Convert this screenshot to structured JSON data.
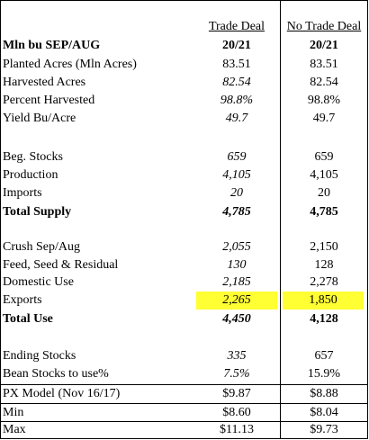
{
  "headers": {
    "trade_deal": "Trade Deal",
    "no_trade_deal": "No Trade Deal"
  },
  "title_row": {
    "label": "Mln bu SEP/AUG",
    "trade": "20/21",
    "no_trade": "20/21"
  },
  "rows": {
    "planted": {
      "label": "Planted Acres (Mln Acres)",
      "trade": "83.51",
      "no_trade": "83.51"
    },
    "harvested": {
      "label": "Harvested Acres",
      "trade": "82.54",
      "no_trade": "82.54"
    },
    "pct_harvested": {
      "label": "Percent Harvested",
      "trade": "98.8%",
      "no_trade": "98.8%"
    },
    "yield": {
      "label": "Yield Bu/Acre",
      "trade": "49.7",
      "no_trade": "49.7"
    },
    "beg_stocks": {
      "label": "Beg. Stocks",
      "trade": "659",
      "no_trade": "659"
    },
    "production": {
      "label": "Production",
      "trade": "4,105",
      "no_trade": "4,105"
    },
    "imports": {
      "label": "Imports",
      "trade": "20",
      "no_trade": "20"
    },
    "total_supply": {
      "label": "Total Supply",
      "trade": "4,785",
      "no_trade": "4,785"
    },
    "crush": {
      "label": "Crush Sep/Aug",
      "trade": "2,055",
      "no_trade": "2,150"
    },
    "feed": {
      "label": "Feed, Seed & Residual",
      "trade": "130",
      "no_trade": "128"
    },
    "domestic": {
      "label": "Domestic Use",
      "trade": "2,185",
      "no_trade": "2,278"
    },
    "exports": {
      "label": "Exports",
      "trade": "2,265",
      "no_trade": "1,850"
    },
    "total_use": {
      "label": "Total Use",
      "trade": "4,450",
      "no_trade": "4,128"
    },
    "ending_stocks": {
      "label": "Ending Stocks",
      "trade": "335",
      "no_trade": "657"
    },
    "stocks_to_use": {
      "label": "Bean Stocks to use%",
      "trade": "7.5%",
      "no_trade": "15.9%"
    },
    "px_model": {
      "label": "PX Model (Nov 16/17)",
      "trade": "$9.87",
      "no_trade": "$8.88"
    },
    "min": {
      "label": "Min",
      "trade": "$8.60",
      "no_trade": "$8.04"
    },
    "max": {
      "label": "Max",
      "trade": "$11.13",
      "no_trade": "$9.73"
    }
  },
  "colors": {
    "highlight": "#ffff33",
    "border": "#000000"
  }
}
